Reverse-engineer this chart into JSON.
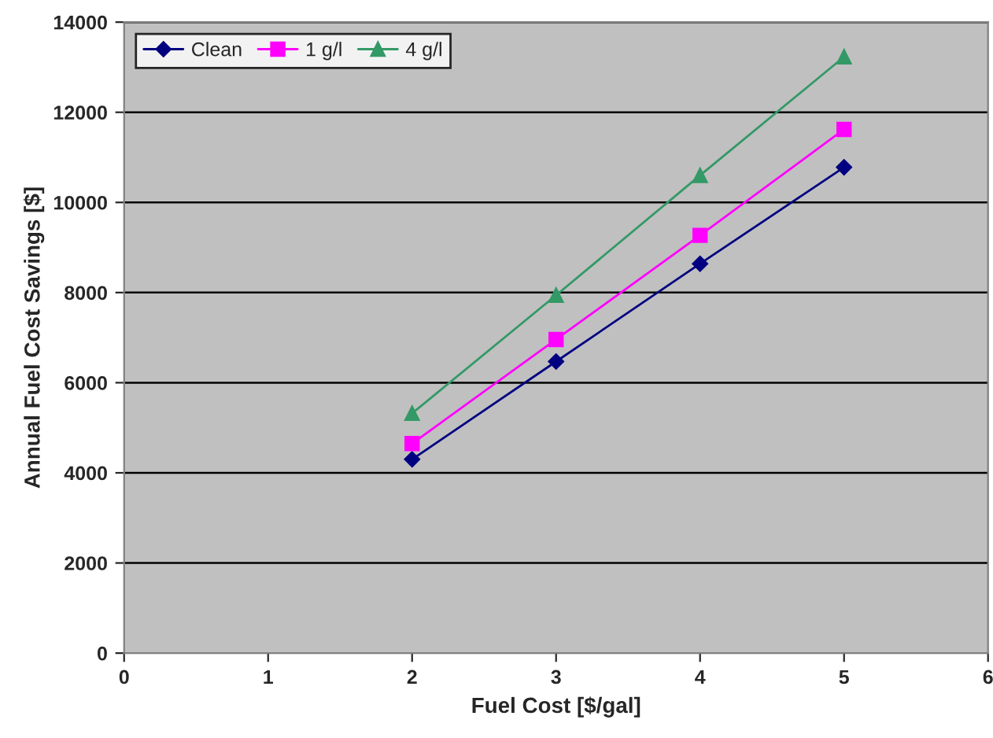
{
  "chart_data": {
    "type": "line",
    "xlabel": "Fuel Cost [$/gal]",
    "ylabel": "Annual Fuel Cost Savings [$]",
    "x": [
      2,
      3,
      4,
      5
    ],
    "series": [
      {
        "name": "Clean",
        "color": "#000080",
        "marker": "diamond",
        "values": [
          4300,
          6470,
          8640,
          10780
        ]
      },
      {
        "name": "1 g/l",
        "color": "#ff00ff",
        "marker": "square",
        "values": [
          4650,
          6960,
          9270,
          11620
        ]
      },
      {
        "name": "4 g/l",
        "color": "#339966",
        "marker": "triangle",
        "values": [
          5320,
          7940,
          10600,
          13230
        ]
      }
    ],
    "xlim": [
      0,
      6
    ],
    "xticks": [
      0,
      1,
      2,
      3,
      4,
      5,
      6
    ],
    "ylim": [
      0,
      14000
    ],
    "yticks": [
      0,
      2000,
      4000,
      6000,
      8000,
      10000,
      12000,
      14000
    ],
    "grid": "y",
    "legend": "top left",
    "line_style": "solid"
  }
}
